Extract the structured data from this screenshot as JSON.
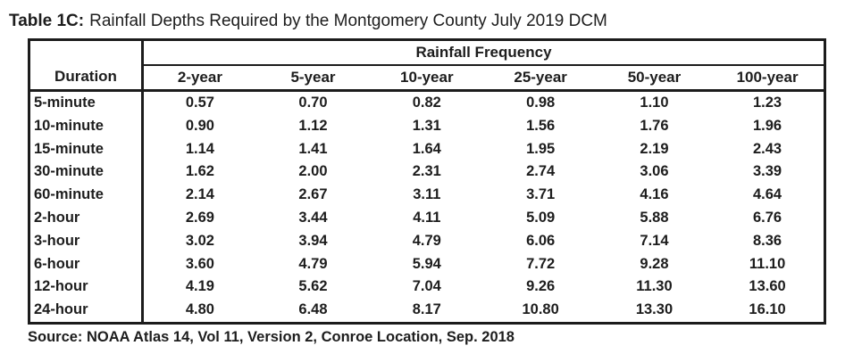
{
  "caption": {
    "label": "Table 1C:",
    "text": "Rainfall Depths Required by the Montgomery County July 2019 DCM"
  },
  "table": {
    "group_header": "Rainfall Frequency",
    "duration_header": "Duration",
    "columns": [
      "2-year",
      "5-year",
      "10-year",
      "25-year",
      "50-year",
      "100-year"
    ],
    "rows": [
      {
        "duration": "5-minute",
        "values": [
          "0.57",
          "0.70",
          "0.82",
          "0.98",
          "1.10",
          "1.23"
        ]
      },
      {
        "duration": "10-minute",
        "values": [
          "0.90",
          "1.12",
          "1.31",
          "1.56",
          "1.76",
          "1.96"
        ]
      },
      {
        "duration": "15-minute",
        "values": [
          "1.14",
          "1.41",
          "1.64",
          "1.95",
          "2.19",
          "2.43"
        ]
      },
      {
        "duration": "30-minute",
        "values": [
          "1.62",
          "2.00",
          "2.31",
          "2.74",
          "3.06",
          "3.39"
        ]
      },
      {
        "duration": "60-minute",
        "values": [
          "2.14",
          "2.67",
          "3.11",
          "3.71",
          "4.16",
          "4.64"
        ]
      },
      {
        "duration": "2-hour",
        "values": [
          "2.69",
          "3.44",
          "4.11",
          "5.09",
          "5.88",
          "6.76"
        ]
      },
      {
        "duration": "3-hour",
        "values": [
          "3.02",
          "3.94",
          "4.79",
          "6.06",
          "7.14",
          "8.36"
        ]
      },
      {
        "duration": "6-hour",
        "values": [
          "3.60",
          "4.79",
          "5.94",
          "7.72",
          "9.28",
          "11.10"
        ]
      },
      {
        "duration": "12-hour",
        "values": [
          "4.19",
          "5.62",
          "7.04",
          "9.26",
          "11.30",
          "13.60"
        ]
      },
      {
        "duration": "24-hour",
        "values": [
          "4.80",
          "6.48",
          "8.17",
          "10.80",
          "13.30",
          "16.10"
        ]
      }
    ]
  },
  "source": "Source: NOAA Atlas 14, Vol 11, Version 2, Conroe Location, Sep. 2018",
  "colors": {
    "border": "#1c1c1c",
    "text": "#1d1d1d",
    "background": "#ffffff"
  }
}
